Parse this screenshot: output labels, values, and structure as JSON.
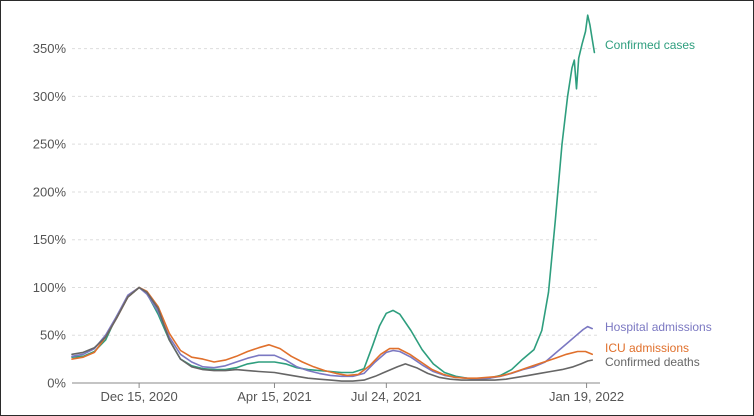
{
  "chart_data": {
    "type": "line",
    "title": "",
    "xlabel": "",
    "ylabel": "",
    "x_range": [
      "2020-10-16",
      "2022-01-31"
    ],
    "ylim": [
      0,
      380
    ],
    "grid": true,
    "legend": "inline-right",
    "y_ticks": [
      {
        "value": 0,
        "label": "0%"
      },
      {
        "value": 50,
        "label": "50%"
      },
      {
        "value": 100,
        "label": "100%"
      },
      {
        "value": 150,
        "label": "150%"
      },
      {
        "value": 200,
        "label": "200%"
      },
      {
        "value": 250,
        "label": "250%"
      },
      {
        "value": 300,
        "label": "300%"
      },
      {
        "value": 350,
        "label": "350%"
      }
    ],
    "x_ticks": [
      {
        "value": "2020-12-15",
        "label": "Dec 15, 2020"
      },
      {
        "value": "2021-04-15",
        "label": "Apr 15, 2021"
      },
      {
        "value": "2021-07-24",
        "label": "Jul 24, 2021"
      },
      {
        "value": "2022-01-19",
        "label": "Jan 19, 2022"
      }
    ],
    "series": [
      {
        "name": "Confirmed cases",
        "color": "#2e9e7e",
        "points": [
          [
            "2020-10-16",
            27
          ],
          [
            "2020-10-26",
            28
          ],
          [
            "2020-11-05",
            33
          ],
          [
            "2020-11-15",
            45
          ],
          [
            "2020-11-25",
            70
          ],
          [
            "2020-12-05",
            90
          ],
          [
            "2020-12-15",
            100
          ],
          [
            "2020-12-22",
            94
          ],
          [
            "2021-01-01",
            72
          ],
          [
            "2021-01-11",
            45
          ],
          [
            "2021-01-21",
            25
          ],
          [
            "2021-01-31",
            18
          ],
          [
            "2021-02-10",
            15
          ],
          [
            "2021-02-20",
            14
          ],
          [
            "2021-03-02",
            14
          ],
          [
            "2021-03-12",
            16
          ],
          [
            "2021-03-22",
            20
          ],
          [
            "2021-04-01",
            22
          ],
          [
            "2021-04-15",
            22
          ],
          [
            "2021-04-25",
            20
          ],
          [
            "2021-05-05",
            16
          ],
          [
            "2021-05-15",
            14
          ],
          [
            "2021-05-25",
            13
          ],
          [
            "2021-06-04",
            12
          ],
          [
            "2021-06-14",
            11
          ],
          [
            "2021-06-24",
            11
          ],
          [
            "2021-07-04",
            15
          ],
          [
            "2021-07-12",
            40
          ],
          [
            "2021-07-18",
            60
          ],
          [
            "2021-07-24",
            73
          ],
          [
            "2021-07-30",
            76
          ],
          [
            "2021-08-05",
            72
          ],
          [
            "2021-08-15",
            55
          ],
          [
            "2021-08-25",
            35
          ],
          [
            "2021-09-04",
            20
          ],
          [
            "2021-09-14",
            11
          ],
          [
            "2021-09-24",
            7
          ],
          [
            "2021-10-04",
            5
          ],
          [
            "2021-10-14",
            4
          ],
          [
            "2021-10-24",
            5
          ],
          [
            "2021-11-03",
            8
          ],
          [
            "2021-11-13",
            14
          ],
          [
            "2021-11-23",
            25
          ],
          [
            "2021-12-03",
            35
          ],
          [
            "2021-12-10",
            55
          ],
          [
            "2021-12-16",
            95
          ],
          [
            "2021-12-22",
            170
          ],
          [
            "2021-12-28",
            250
          ],
          [
            "2022-01-02",
            300
          ],
          [
            "2022-01-06",
            330
          ],
          [
            "2022-01-08",
            338
          ],
          [
            "2022-01-10",
            308
          ],
          [
            "2022-01-12",
            340
          ],
          [
            "2022-01-15",
            355
          ],
          [
            "2022-01-18",
            368
          ],
          [
            "2022-01-20",
            385
          ],
          [
            "2022-01-22",
            375
          ],
          [
            "2022-01-24",
            360
          ],
          [
            "2022-01-26",
            346
          ]
        ]
      },
      {
        "name": "Hospital admissions",
        "color": "#7b78c2",
        "points": [
          [
            "2020-10-16",
            28
          ],
          [
            "2020-10-26",
            30
          ],
          [
            "2020-11-05",
            36
          ],
          [
            "2020-11-15",
            50
          ],
          [
            "2020-11-25",
            70
          ],
          [
            "2020-12-05",
            92
          ],
          [
            "2020-12-15",
            100
          ],
          [
            "2020-12-22",
            93
          ],
          [
            "2021-01-01",
            75
          ],
          [
            "2021-01-11",
            48
          ],
          [
            "2021-01-21",
            30
          ],
          [
            "2021-01-31",
            22
          ],
          [
            "2021-02-10",
            17
          ],
          [
            "2021-02-20",
            16
          ],
          [
            "2021-03-02",
            18
          ],
          [
            "2021-03-12",
            22
          ],
          [
            "2021-03-22",
            26
          ],
          [
            "2021-04-01",
            29
          ],
          [
            "2021-04-15",
            29
          ],
          [
            "2021-04-25",
            24
          ],
          [
            "2021-05-05",
            17
          ],
          [
            "2021-05-15",
            13
          ],
          [
            "2021-05-25",
            10
          ],
          [
            "2021-06-04",
            8
          ],
          [
            "2021-06-14",
            7
          ],
          [
            "2021-06-24",
            7
          ],
          [
            "2021-07-04",
            10
          ],
          [
            "2021-07-14",
            22
          ],
          [
            "2021-07-24",
            32
          ],
          [
            "2021-07-30",
            34
          ],
          [
            "2021-08-05",
            33
          ],
          [
            "2021-08-15",
            27
          ],
          [
            "2021-08-25",
            19
          ],
          [
            "2021-09-04",
            12
          ],
          [
            "2021-09-14",
            8
          ],
          [
            "2021-09-24",
            6
          ],
          [
            "2021-10-04",
            5
          ],
          [
            "2021-10-14",
            4
          ],
          [
            "2021-10-24",
            5
          ],
          [
            "2021-11-03",
            7
          ],
          [
            "2021-11-13",
            10
          ],
          [
            "2021-11-23",
            14
          ],
          [
            "2021-12-03",
            17
          ],
          [
            "2021-12-13",
            22
          ],
          [
            "2021-12-23",
            32
          ],
          [
            "2022-01-02",
            42
          ],
          [
            "2022-01-10",
            50
          ],
          [
            "2022-01-16",
            56
          ],
          [
            "2022-01-20",
            59
          ],
          [
            "2022-01-24",
            57
          ]
        ]
      },
      {
        "name": "ICU admissions",
        "color": "#e0702c",
        "points": [
          [
            "2020-10-16",
            25
          ],
          [
            "2020-10-26",
            27
          ],
          [
            "2020-11-05",
            32
          ],
          [
            "2020-11-15",
            48
          ],
          [
            "2020-11-25",
            68
          ],
          [
            "2020-12-05",
            90
          ],
          [
            "2020-12-15",
            100
          ],
          [
            "2020-12-22",
            96
          ],
          [
            "2021-01-01",
            80
          ],
          [
            "2021-01-11",
            52
          ],
          [
            "2021-01-21",
            34
          ],
          [
            "2021-01-31",
            27
          ],
          [
            "2021-02-10",
            25
          ],
          [
            "2021-02-20",
            22
          ],
          [
            "2021-03-02",
            24
          ],
          [
            "2021-03-12",
            28
          ],
          [
            "2021-03-22",
            33
          ],
          [
            "2021-04-01",
            37
          ],
          [
            "2021-04-10",
            40
          ],
          [
            "2021-04-20",
            36
          ],
          [
            "2021-04-30",
            28
          ],
          [
            "2021-05-10",
            22
          ],
          [
            "2021-05-20",
            17
          ],
          [
            "2021-05-30",
            13
          ],
          [
            "2021-06-09",
            10
          ],
          [
            "2021-06-19",
            8
          ],
          [
            "2021-06-29",
            9
          ],
          [
            "2021-07-09",
            18
          ],
          [
            "2021-07-19",
            30
          ],
          [
            "2021-07-27",
            36
          ],
          [
            "2021-08-04",
            36
          ],
          [
            "2021-08-14",
            30
          ],
          [
            "2021-08-24",
            22
          ],
          [
            "2021-09-03",
            14
          ],
          [
            "2021-09-13",
            9
          ],
          [
            "2021-09-23",
            6
          ],
          [
            "2021-10-03",
            5
          ],
          [
            "2021-10-13",
            5
          ],
          [
            "2021-10-23",
            6
          ],
          [
            "2021-11-02",
            7
          ],
          [
            "2021-11-12",
            10
          ],
          [
            "2021-11-22",
            14
          ],
          [
            "2021-12-02",
            18
          ],
          [
            "2021-12-12",
            22
          ],
          [
            "2021-12-22",
            26
          ],
          [
            "2022-01-01",
            30
          ],
          [
            "2022-01-11",
            33
          ],
          [
            "2022-01-18",
            33
          ],
          [
            "2022-01-24",
            30
          ]
        ]
      },
      {
        "name": "Confirmed deaths",
        "color": "#666666",
        "points": [
          [
            "2020-10-16",
            30
          ],
          [
            "2020-10-26",
            32
          ],
          [
            "2020-11-05",
            37
          ],
          [
            "2020-11-15",
            48
          ],
          [
            "2020-11-25",
            68
          ],
          [
            "2020-12-05",
            90
          ],
          [
            "2020-12-15",
            100
          ],
          [
            "2020-12-22",
            95
          ],
          [
            "2021-01-01",
            78
          ],
          [
            "2021-01-11",
            45
          ],
          [
            "2021-01-21",
            25
          ],
          [
            "2021-01-31",
            17
          ],
          [
            "2021-02-10",
            14
          ],
          [
            "2021-02-20",
            13
          ],
          [
            "2021-03-02",
            13
          ],
          [
            "2021-03-12",
            14
          ],
          [
            "2021-03-22",
            13
          ],
          [
            "2021-04-01",
            12
          ],
          [
            "2021-04-15",
            11
          ],
          [
            "2021-04-25",
            9
          ],
          [
            "2021-05-05",
            7
          ],
          [
            "2021-05-15",
            5
          ],
          [
            "2021-05-25",
            4
          ],
          [
            "2021-06-04",
            3
          ],
          [
            "2021-06-14",
            2
          ],
          [
            "2021-06-24",
            2
          ],
          [
            "2021-07-04",
            3
          ],
          [
            "2021-07-14",
            7
          ],
          [
            "2021-07-24",
            12
          ],
          [
            "2021-08-03",
            17
          ],
          [
            "2021-08-10",
            20
          ],
          [
            "2021-08-20",
            16
          ],
          [
            "2021-08-30",
            10
          ],
          [
            "2021-09-09",
            6
          ],
          [
            "2021-09-19",
            4
          ],
          [
            "2021-09-29",
            3
          ],
          [
            "2021-10-09",
            3
          ],
          [
            "2021-10-19",
            3
          ],
          [
            "2021-10-29",
            3
          ],
          [
            "2021-11-08",
            4
          ],
          [
            "2021-11-18",
            6
          ],
          [
            "2021-11-28",
            8
          ],
          [
            "2021-12-08",
            10
          ],
          [
            "2021-12-18",
            12
          ],
          [
            "2021-12-28",
            14
          ],
          [
            "2022-01-07",
            17
          ],
          [
            "2022-01-14",
            20
          ],
          [
            "2022-01-20",
            23
          ],
          [
            "2022-01-24",
            24
          ]
        ]
      }
    ]
  }
}
